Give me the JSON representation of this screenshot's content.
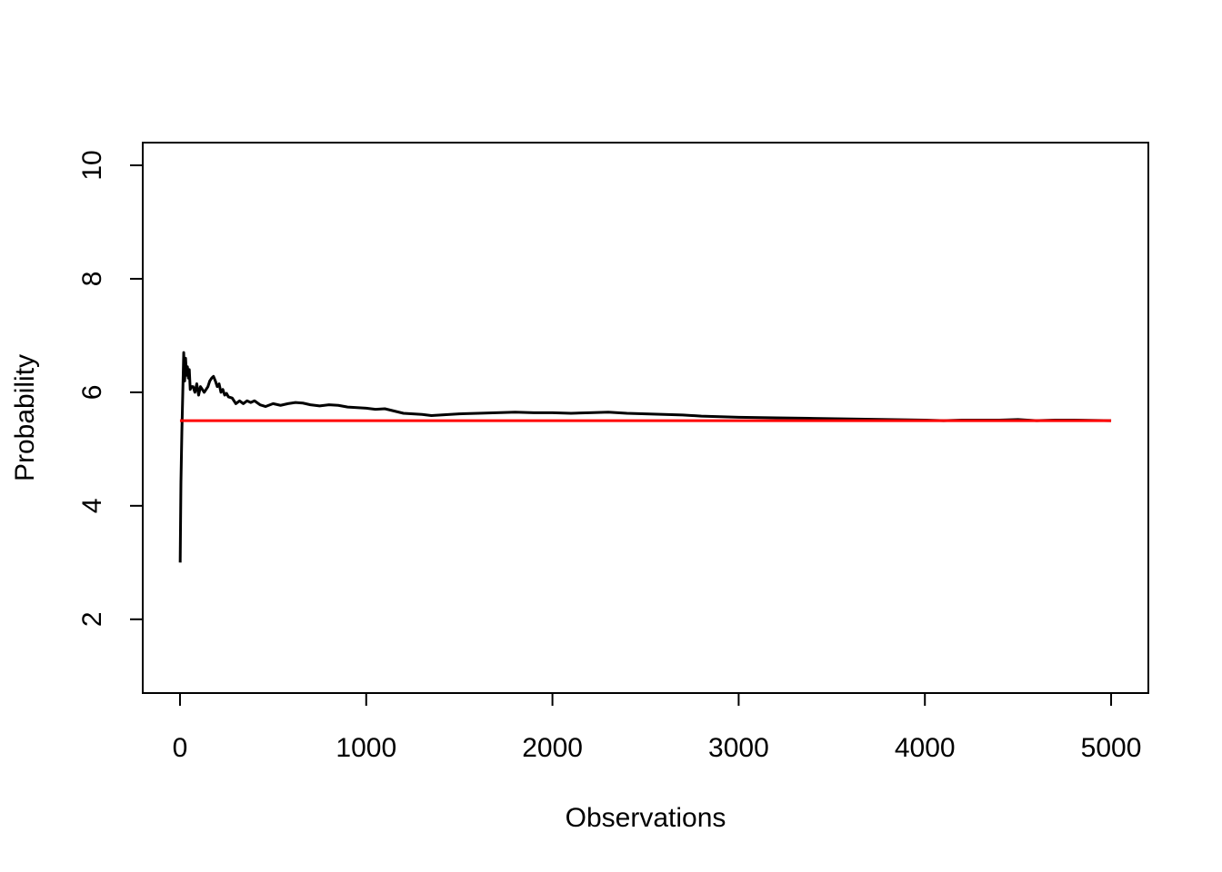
{
  "chart_data": {
    "type": "line",
    "title": "",
    "xlabel": "Observations",
    "ylabel": "Probability",
    "xlim": [
      -200,
      5200
    ],
    "ylim": [
      0.7,
      10.4
    ],
    "x_ticks": [
      0,
      1000,
      2000,
      3000,
      4000,
      5000
    ],
    "x_tick_labels": [
      "0",
      "1000",
      "2000",
      "3000",
      "4000",
      "5000"
    ],
    "y_ticks": [
      2,
      4,
      6,
      8,
      10
    ],
    "y_tick_labels": [
      "2",
      "4",
      "6",
      "8",
      "10"
    ],
    "grid": false,
    "legend": "none",
    "series": [
      {
        "color": "#000000",
        "x": [
          1,
          5,
          10,
          15,
          20,
          25,
          30,
          35,
          40,
          45,
          50,
          55,
          60,
          70,
          80,
          90,
          100,
          110,
          120,
          130,
          140,
          150,
          160,
          170,
          180,
          190,
          200,
          210,
          220,
          230,
          240,
          250,
          260,
          280,
          300,
          320,
          340,
          360,
          380,
          400,
          430,
          460,
          500,
          540,
          580,
          620,
          660,
          700,
          750,
          800,
          850,
          900,
          950,
          1000,
          1050,
          1100,
          1150,
          1200,
          1250,
          1300,
          1350,
          1400,
          1500,
          1600,
          1700,
          1800,
          1900,
          2000,
          2100,
          2200,
          2300,
          2400,
          2500,
          2600,
          2700,
          2800,
          2900,
          3000,
          3200,
          3400,
          3600,
          3800,
          4000,
          4100,
          4200,
          4400,
          4500,
          4600,
          4700,
          4800,
          5000
        ],
        "y": [
          3.0,
          4.4,
          5.3,
          6.0,
          6.7,
          6.2,
          6.6,
          6.3,
          6.45,
          6.25,
          6.4,
          6.05,
          6.1,
          6.1,
          6.0,
          6.15,
          5.95,
          6.1,
          6.05,
          6.0,
          6.05,
          6.1,
          6.2,
          6.25,
          6.28,
          6.2,
          6.1,
          6.15,
          6.0,
          6.05,
          5.95,
          5.98,
          5.92,
          5.9,
          5.8,
          5.85,
          5.8,
          5.85,
          5.82,
          5.85,
          5.78,
          5.75,
          5.8,
          5.77,
          5.8,
          5.82,
          5.81,
          5.78,
          5.76,
          5.78,
          5.77,
          5.74,
          5.73,
          5.72,
          5.7,
          5.71,
          5.67,
          5.63,
          5.62,
          5.61,
          5.59,
          5.6,
          5.62,
          5.63,
          5.64,
          5.65,
          5.64,
          5.64,
          5.63,
          5.64,
          5.65,
          5.63,
          5.62,
          5.61,
          5.6,
          5.58,
          5.57,
          5.56,
          5.55,
          5.54,
          5.53,
          5.52,
          5.51,
          5.5,
          5.51,
          5.51,
          5.52,
          5.5,
          5.51,
          5.51,
          5.5
        ]
      },
      {
        "color": "#ff0000",
        "x": [
          0,
          5000
        ],
        "y": [
          5.5,
          5.5
        ]
      }
    ]
  }
}
